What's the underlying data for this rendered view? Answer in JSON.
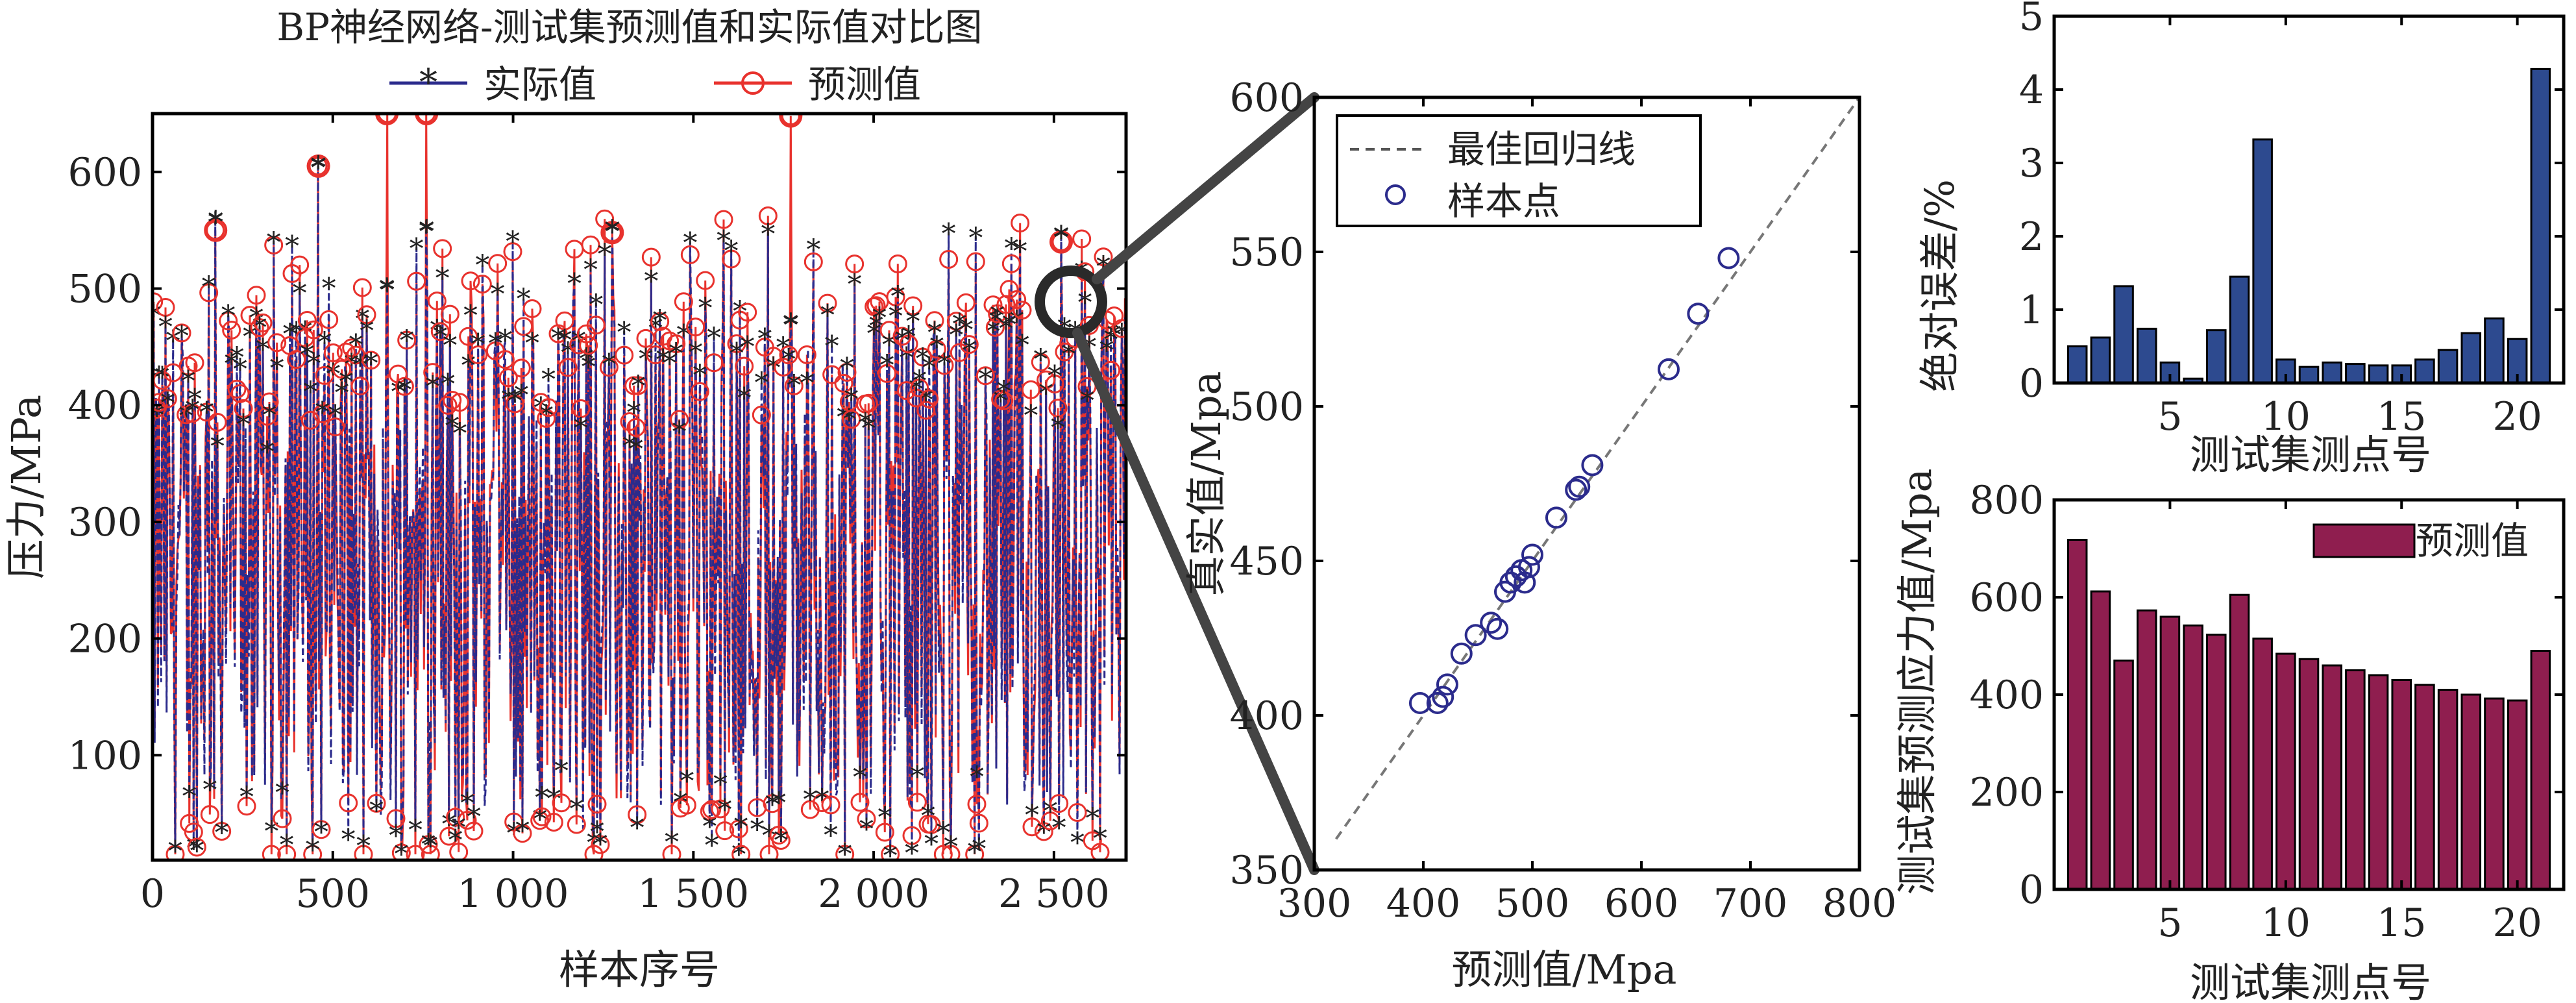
{
  "chart_data": [
    {
      "id": "left",
      "type": "line",
      "title": "BP神经网络-测试集预测值和实际值对比图",
      "xlabel": "样本序号",
      "ylabel": "压力/MPa",
      "xlim": [
        0,
        2700
      ],
      "ylim": [
        10,
        650
      ],
      "x_ticks": [
        0,
        500,
        1000,
        1500,
        2000,
        2500
      ],
      "x_tick_labels": [
        "0",
        "500",
        "1 000",
        "1 500",
        "2 000",
        "2 500"
      ],
      "y_ticks": [
        100,
        200,
        300,
        400,
        500,
        600
      ],
      "y_tick_labels": [
        "100",
        "200",
        "300",
        "400",
        "500",
        "600"
      ],
      "series": [
        {
          "name": "实际值",
          "color": "#2b2b8c",
          "marker": "star",
          "style": "dash-dot"
        },
        {
          "name": "预测值",
          "color": "#e8322d",
          "marker": "circle",
          "style": "solid"
        }
      ],
      "n_points": 2700,
      "approx_range": [
        15,
        600
      ],
      "notable_peaks": [
        {
          "x": 460,
          "actual": 605,
          "predicted": 605
        },
        {
          "x": 1770,
          "actual": 470,
          "predicted": 648
        },
        {
          "x": 650,
          "actual": 500,
          "predicted": 650
        },
        {
          "x": 760,
          "actual": 550,
          "predicted": 650
        },
        {
          "x": 175,
          "actual": 558,
          "predicted": 550
        },
        {
          "x": 1275,
          "actual": 550,
          "predicted": 548
        },
        {
          "x": 2520,
          "actual": 545,
          "predicted": 540
        }
      ],
      "legend_position": "top-center"
    },
    {
      "id": "scatter",
      "type": "scatter",
      "xlabel": "预测值/Mpa",
      "ylabel": "真实值/Mpa",
      "xlim": [
        300,
        800
      ],
      "ylim": [
        350,
        600
      ],
      "x_ticks": [
        300,
        400,
        500,
        600,
        700,
        800
      ],
      "y_ticks": [
        350,
        400,
        450,
        500,
        550,
        600
      ],
      "series": [
        {
          "name": "最佳回归线",
          "style": "dashed",
          "color": "#888888",
          "x": [
            320,
            800
          ],
          "y": [
            360,
            600
          ]
        },
        {
          "name": "样本点",
          "style": "circle",
          "color": "#2b2b8c",
          "x": [
            397,
            413,
            418,
            422,
            435,
            448,
            462,
            468,
            475,
            480,
            485,
            490,
            493,
            497,
            500,
            522,
            540,
            543,
            555,
            625,
            652,
            680
          ],
          "y": [
            404,
            404,
            406,
            410,
            420,
            426,
            430,
            428,
            440,
            443,
            445,
            447,
            443,
            448,
            452,
            464,
            473,
            474,
            481,
            512,
            530,
            548
          ]
        }
      ],
      "legend_position": "top-left"
    },
    {
      "id": "error",
      "type": "bar",
      "xlabel": "测试集测点号",
      "ylabel": "绝对误差/%",
      "ylim": [
        0,
        5
      ],
      "xlim": [
        0,
        22
      ],
      "x_ticks": [
        5,
        10,
        15,
        20
      ],
      "y_ticks": [
        0,
        1,
        2,
        3,
        4,
        5
      ],
      "color": "#2d4a8f",
      "categories": [
        1,
        2,
        3,
        4,
        5,
        6,
        7,
        8,
        9,
        10,
        11,
        12,
        13,
        14,
        15,
        16,
        17,
        18,
        19,
        20,
        21
      ],
      "values": [
        0.5,
        0.62,
        1.32,
        0.74,
        0.28,
        0.06,
        0.72,
        1.45,
        3.32,
        0.32,
        0.22,
        0.28,
        0.26,
        0.24,
        0.24,
        0.32,
        0.45,
        0.68,
        0.88,
        0.6,
        4.28
      ]
    },
    {
      "id": "pred",
      "type": "bar",
      "xlabel": "测试集测点号",
      "ylabel": "测试集预测应力值/Mpa",
      "ylim": [
        0,
        800
      ],
      "xlim": [
        0,
        22
      ],
      "x_ticks": [
        5,
        10,
        15,
        20
      ],
      "y_ticks": [
        0,
        200,
        400,
        600,
        800
      ],
      "color": "#8f1e4f",
      "categories": [
        1,
        2,
        3,
        4,
        5,
        6,
        7,
        8,
        9,
        10,
        11,
        12,
        13,
        14,
        15,
        16,
        17,
        18,
        19,
        20,
        21
      ],
      "values": [
        718,
        612,
        470,
        573,
        560,
        542,
        523,
        605,
        515,
        484,
        473,
        460,
        450,
        440,
        430,
        420,
        410,
        400,
        392,
        388,
        490
      ],
      "legend": [
        "预测值"
      ],
      "legend_position": "top-right"
    }
  ]
}
